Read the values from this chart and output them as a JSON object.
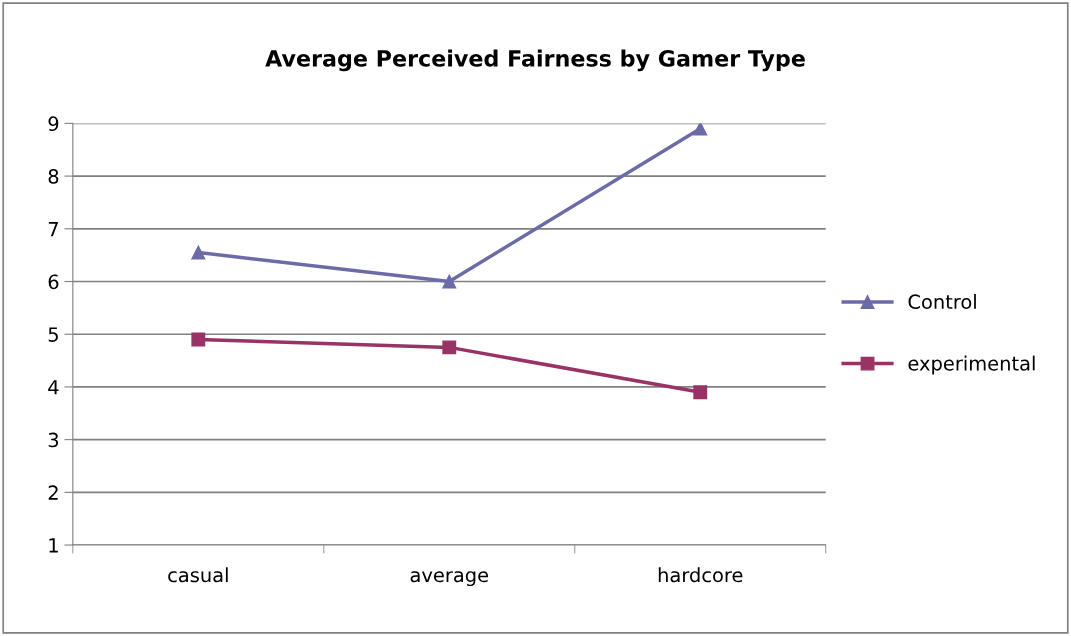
{
  "chart_data": {
    "type": "line",
    "title": "Average Perceived Fairness by Gamer Type",
    "categories": [
      "casual",
      "average",
      "hardcore"
    ],
    "series": [
      {
        "name": "Control",
        "color": "#6b6ba8",
        "marker": "triangle",
        "values": [
          6.55,
          6.0,
          8.9
        ]
      },
      {
        "name": "experimental",
        "color": "#993366",
        "marker": "square",
        "values": [
          4.9,
          4.75,
          3.9
        ]
      }
    ],
    "ylim": [
      1,
      9
    ],
    "yticks": [
      1,
      2,
      3,
      4,
      5,
      6,
      7,
      8,
      9
    ],
    "grid": "y",
    "legend": "right",
    "line_style": "solid"
  }
}
